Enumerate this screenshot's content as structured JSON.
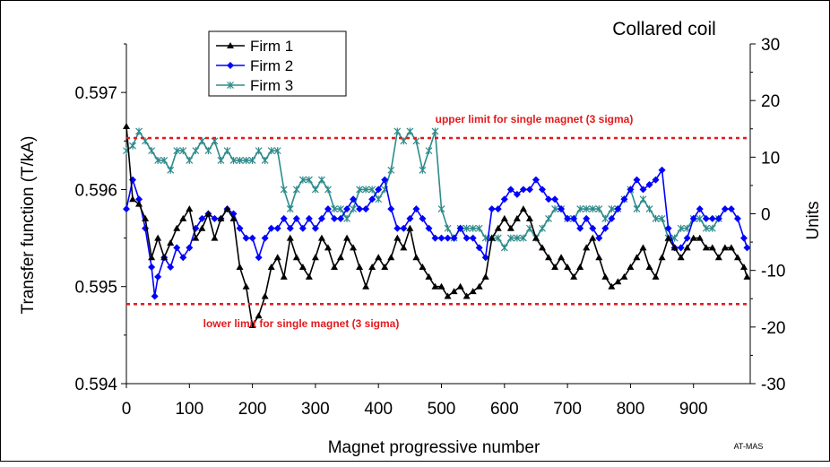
{
  "chart_data": {
    "type": "line",
    "title": "Collared coil",
    "xlabel": "Magnet progressive number",
    "ylabel": "Transfer function (T/kA)",
    "y2label": "Units",
    "xlim": [
      0,
      990
    ],
    "ylim": [
      0.594,
      0.5975
    ],
    "y2lim": [
      -30,
      30
    ],
    "xticks": [
      "0",
      "100",
      "200",
      "300",
      "400",
      "500",
      "600",
      "700",
      "800",
      "900"
    ],
    "yticks": [
      "0.594",
      "0.595",
      "0.596",
      "0.597"
    ],
    "y2ticks": [
      "-30",
      "-20",
      "-10",
      "0",
      "10",
      "20",
      "30"
    ],
    "grid": false,
    "legend_position": "top-left",
    "limits": [
      {
        "label": "upper limit for single magnet (3 sigma)",
        "y": 0.59653,
        "color": "#e41a1c"
      },
      {
        "label": "lower limit for single magnet (3 sigma)",
        "y": 0.59482,
        "color": "#e41a1c"
      }
    ],
    "series": [
      {
        "name": "Firm 1",
        "color": "#000000",
        "marker": "triangle",
        "points": [
          [
            0,
            0.59665
          ],
          [
            10,
            0.5959
          ],
          [
            20,
            0.59585
          ],
          [
            30,
            0.5957
          ],
          [
            40,
            0.5953
          ],
          [
            50,
            0.5955
          ],
          [
            60,
            0.5953
          ],
          [
            70,
            0.59545
          ],
          [
            80,
            0.5956
          ],
          [
            90,
            0.5957
          ],
          [
            100,
            0.5958
          ],
          [
            110,
            0.5955
          ],
          [
            120,
            0.5956
          ],
          [
            130,
            0.59575
          ],
          [
            140,
            0.5955
          ],
          [
            150,
            0.5957
          ],
          [
            160,
            0.5958
          ],
          [
            170,
            0.5957
          ],
          [
            180,
            0.5952
          ],
          [
            190,
            0.595
          ],
          [
            200,
            0.5946
          ],
          [
            210,
            0.5947
          ],
          [
            220,
            0.5949
          ],
          [
            230,
            0.5952
          ],
          [
            240,
            0.5953
          ],
          [
            250,
            0.5951
          ],
          [
            260,
            0.5955
          ],
          [
            270,
            0.5953
          ],
          [
            280,
            0.5952
          ],
          [
            290,
            0.5951
          ],
          [
            300,
            0.5953
          ],
          [
            310,
            0.5955
          ],
          [
            320,
            0.5954
          ],
          [
            330,
            0.5952
          ],
          [
            340,
            0.5953
          ],
          [
            350,
            0.5955
          ],
          [
            360,
            0.5954
          ],
          [
            370,
            0.5952
          ],
          [
            380,
            0.595
          ],
          [
            390,
            0.5952
          ],
          [
            400,
            0.5953
          ],
          [
            410,
            0.5952
          ],
          [
            420,
            0.5953
          ],
          [
            430,
            0.5955
          ],
          [
            440,
            0.5954
          ],
          [
            450,
            0.5956
          ],
          [
            460,
            0.5953
          ],
          [
            470,
            0.5952
          ],
          [
            480,
            0.5951
          ],
          [
            490,
            0.595
          ],
          [
            500,
            0.595
          ],
          [
            510,
            0.5949
          ],
          [
            520,
            0.59495
          ],
          [
            530,
            0.595
          ],
          [
            540,
            0.5949
          ],
          [
            550,
            0.59495
          ],
          [
            560,
            0.595
          ],
          [
            570,
            0.5951
          ],
          [
            580,
            0.5955
          ],
          [
            590,
            0.5956
          ],
          [
            600,
            0.5957
          ],
          [
            610,
            0.5956
          ],
          [
            620,
            0.5957
          ],
          [
            630,
            0.5958
          ],
          [
            640,
            0.5957
          ],
          [
            650,
            0.5955
          ],
          [
            660,
            0.5954
          ],
          [
            670,
            0.5953
          ],
          [
            680,
            0.5952
          ],
          [
            690,
            0.5953
          ],
          [
            700,
            0.5952
          ],
          [
            710,
            0.5951
          ],
          [
            720,
            0.5952
          ],
          [
            730,
            0.5954
          ],
          [
            740,
            0.5955
          ],
          [
            750,
            0.5953
          ],
          [
            760,
            0.5951
          ],
          [
            770,
            0.595
          ],
          [
            780,
            0.59505
          ],
          [
            790,
            0.5951
          ],
          [
            800,
            0.5952
          ],
          [
            810,
            0.5953
          ],
          [
            820,
            0.5954
          ],
          [
            830,
            0.5952
          ],
          [
            840,
            0.5951
          ],
          [
            850,
            0.5953
          ],
          [
            860,
            0.5955
          ],
          [
            870,
            0.5954
          ],
          [
            880,
            0.5953
          ],
          [
            890,
            0.5954
          ],
          [
            900,
            0.5955
          ],
          [
            910,
            0.5955
          ],
          [
            920,
            0.5954
          ],
          [
            930,
            0.5954
          ],
          [
            940,
            0.5953
          ],
          [
            950,
            0.5954
          ],
          [
            960,
            0.5954
          ],
          [
            970,
            0.5953
          ],
          [
            980,
            0.5952
          ],
          [
            985,
            0.5951
          ]
        ]
      },
      {
        "name": "Firm 2",
        "color": "#0000ff",
        "marker": "diamond",
        "points": [
          [
            0,
            0.5958
          ],
          [
            10,
            0.5961
          ],
          [
            20,
            0.5959
          ],
          [
            30,
            0.5956
          ],
          [
            40,
            0.5952
          ],
          [
            45,
            0.5949
          ],
          [
            50,
            0.5951
          ],
          [
            60,
            0.5953
          ],
          [
            70,
            0.5952
          ],
          [
            80,
            0.5954
          ],
          [
            90,
            0.5953
          ],
          [
            100,
            0.5954
          ],
          [
            110,
            0.5956
          ],
          [
            120,
            0.5957
          ],
          [
            130,
            0.59575
          ],
          [
            140,
            0.5957
          ],
          [
            150,
            0.5957
          ],
          [
            160,
            0.5958
          ],
          [
            170,
            0.59575
          ],
          [
            180,
            0.5956
          ],
          [
            190,
            0.5955
          ],
          [
            200,
            0.5955
          ],
          [
            210,
            0.5953
          ],
          [
            220,
            0.5955
          ],
          [
            230,
            0.5956
          ],
          [
            240,
            0.5956
          ],
          [
            250,
            0.5957
          ],
          [
            260,
            0.5956
          ],
          [
            270,
            0.5957
          ],
          [
            280,
            0.5956
          ],
          [
            290,
            0.5957
          ],
          [
            300,
            0.5956
          ],
          [
            310,
            0.5957
          ],
          [
            320,
            0.5958
          ],
          [
            330,
            0.5957
          ],
          [
            340,
            0.5957
          ],
          [
            350,
            0.5958
          ],
          [
            360,
            0.5959
          ],
          [
            370,
            0.5958
          ],
          [
            380,
            0.5958
          ],
          [
            390,
            0.5959
          ],
          [
            400,
            0.596
          ],
          [
            410,
            0.5961
          ],
          [
            420,
            0.5958
          ],
          [
            430,
            0.5956
          ],
          [
            440,
            0.5956
          ],
          [
            450,
            0.5957
          ],
          [
            460,
            0.5958
          ],
          [
            470,
            0.5957
          ],
          [
            480,
            0.5956
          ],
          [
            490,
            0.5955
          ],
          [
            500,
            0.5955
          ],
          [
            510,
            0.5955
          ],
          [
            520,
            0.5955
          ],
          [
            530,
            0.5956
          ],
          [
            540,
            0.5955
          ],
          [
            550,
            0.5955
          ],
          [
            560,
            0.5954
          ],
          [
            570,
            0.5953
          ],
          [
            580,
            0.5958
          ],
          [
            590,
            0.5958
          ],
          [
            600,
            0.5959
          ],
          [
            610,
            0.596
          ],
          [
            620,
            0.59595
          ],
          [
            630,
            0.596
          ],
          [
            640,
            0.596
          ],
          [
            650,
            0.5961
          ],
          [
            660,
            0.596
          ],
          [
            670,
            0.5959
          ],
          [
            680,
            0.5959
          ],
          [
            690,
            0.5958
          ],
          [
            700,
            0.5957
          ],
          [
            710,
            0.5957
          ],
          [
            720,
            0.5956
          ],
          [
            730,
            0.5957
          ],
          [
            740,
            0.5956
          ],
          [
            750,
            0.5955
          ],
          [
            760,
            0.5956
          ],
          [
            770,
            0.5957
          ],
          [
            780,
            0.5958
          ],
          [
            790,
            0.5959
          ],
          [
            800,
            0.596
          ],
          [
            810,
            0.5961
          ],
          [
            820,
            0.596
          ],
          [
            830,
            0.59605
          ],
          [
            840,
            0.5961
          ],
          [
            850,
            0.5962
          ],
          [
            860,
            0.5956
          ],
          [
            870,
            0.5954
          ],
          [
            880,
            0.5954
          ],
          [
            890,
            0.5955
          ],
          [
            900,
            0.5957
          ],
          [
            910,
            0.5958
          ],
          [
            920,
            0.5957
          ],
          [
            930,
            0.5957
          ],
          [
            940,
            0.5957
          ],
          [
            950,
            0.5958
          ],
          [
            960,
            0.5958
          ],
          [
            970,
            0.5957
          ],
          [
            980,
            0.5955
          ],
          [
            985,
            0.5954
          ]
        ]
      },
      {
        "name": "Firm 3",
        "color": "#2e8b8b",
        "marker": "star",
        "points": [
          [
            0,
            0.5964
          ],
          [
            10,
            0.59645
          ],
          [
            20,
            0.5966
          ],
          [
            30,
            0.5965
          ],
          [
            40,
            0.5964
          ],
          [
            50,
            0.5963
          ],
          [
            60,
            0.5963
          ],
          [
            70,
            0.5962
          ],
          [
            80,
            0.5964
          ],
          [
            90,
            0.5964
          ],
          [
            100,
            0.5963
          ],
          [
            110,
            0.5964
          ],
          [
            120,
            0.5965
          ],
          [
            130,
            0.5964
          ],
          [
            140,
            0.5965
          ],
          [
            150,
            0.5963
          ],
          [
            160,
            0.5964
          ],
          [
            170,
            0.5963
          ],
          [
            180,
            0.5963
          ],
          [
            190,
            0.5963
          ],
          [
            200,
            0.5963
          ],
          [
            210,
            0.5964
          ],
          [
            220,
            0.5963
          ],
          [
            230,
            0.5964
          ],
          [
            240,
            0.5964
          ],
          [
            250,
            0.596
          ],
          [
            260,
            0.5958
          ],
          [
            270,
            0.596
          ],
          [
            280,
            0.5961
          ],
          [
            290,
            0.5961
          ],
          [
            300,
            0.596
          ],
          [
            310,
            0.5961
          ],
          [
            320,
            0.596
          ],
          [
            330,
            0.5958
          ],
          [
            340,
            0.5958
          ],
          [
            350,
            0.5957
          ],
          [
            360,
            0.5958
          ],
          [
            370,
            0.596
          ],
          [
            380,
            0.596
          ],
          [
            390,
            0.596
          ],
          [
            400,
            0.5959
          ],
          [
            410,
            0.596
          ],
          [
            420,
            0.5962
          ],
          [
            430,
            0.5966
          ],
          [
            440,
            0.5965
          ],
          [
            450,
            0.5966
          ],
          [
            460,
            0.5965
          ],
          [
            470,
            0.5962
          ],
          [
            480,
            0.5964
          ],
          [
            490,
            0.5966
          ],
          [
            500,
            0.5958
          ],
          [
            510,
            0.5956
          ],
          [
            520,
            0.5955
          ],
          [
            530,
            0.5956
          ],
          [
            540,
            0.5956
          ],
          [
            550,
            0.5956
          ],
          [
            560,
            0.5956
          ],
          [
            570,
            0.5955
          ],
          [
            580,
            0.5955
          ],
          [
            590,
            0.5955
          ],
          [
            600,
            0.5954
          ],
          [
            610,
            0.5955
          ],
          [
            620,
            0.5955
          ],
          [
            630,
            0.5955
          ],
          [
            640,
            0.5956
          ],
          [
            650,
            0.5955
          ],
          [
            660,
            0.5956
          ],
          [
            670,
            0.5957
          ],
          [
            680,
            0.5958
          ],
          [
            690,
            0.5958
          ],
          [
            700,
            0.5957
          ],
          [
            710,
            0.5957
          ],
          [
            720,
            0.5958
          ],
          [
            730,
            0.5958
          ],
          [
            740,
            0.5958
          ],
          [
            750,
            0.5958
          ],
          [
            760,
            0.5957
          ],
          [
            770,
            0.5958
          ],
          [
            780,
            0.5958
          ],
          [
            790,
            0.5959
          ],
          [
            800,
            0.596
          ],
          [
            810,
            0.5958
          ],
          [
            820,
            0.5959
          ],
          [
            830,
            0.5958
          ],
          [
            840,
            0.5957
          ],
          [
            850,
            0.5957
          ],
          [
            860,
            0.5955
          ],
          [
            870,
            0.5955
          ],
          [
            880,
            0.5956
          ],
          [
            890,
            0.5956
          ],
          [
            900,
            0.5957
          ],
          [
            910,
            0.5957
          ],
          [
            920,
            0.5956
          ],
          [
            930,
            0.5956
          ],
          [
            940,
            0.5957
          ]
        ]
      }
    ]
  },
  "footer": {
    "label": "AT-MAS"
  }
}
